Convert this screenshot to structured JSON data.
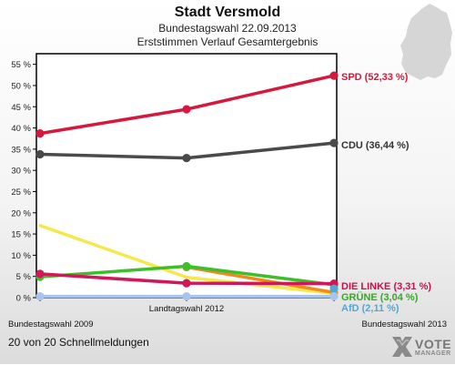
{
  "header": {
    "title": "Stadt Versmold",
    "subtitle": "Bundestagswahl 22.09.2013",
    "subtitle2": "Erststimmen Verlauf Gesamtergebnis"
  },
  "footer": {
    "text": "20 von 20 Schnellmeldungen"
  },
  "brand": {
    "vote": "VOTE",
    "manager": "MANAGER"
  },
  "chart_data": {
    "type": "line",
    "categories": [
      "Bundestagswahl 2009",
      "Landtagswahl 2012",
      "Bundestagswahl 2013"
    ],
    "ylim": [
      0,
      57.5
    ],
    "yticks": [
      0,
      5,
      10,
      15,
      20,
      25,
      30,
      35,
      40,
      45,
      50,
      55
    ],
    "ytick_labels": [
      "0 %",
      "5 %",
      "10 %",
      "15 %",
      "20 %",
      "25 %",
      "30 %",
      "35 %",
      "40 %",
      "45 %",
      "50 %",
      "55 %"
    ],
    "grid": false,
    "series": [
      {
        "key": "fdp",
        "values": [
          17.0,
          4.8,
          1.0
        ],
        "color": "#f5e84a",
        "marker": false
      },
      {
        "key": "cdu",
        "values": [
          33.8,
          32.9,
          36.44
        ],
        "color": "#4a4a4a",
        "label": "CDU (36,44 %)",
        "label_color": "#333333"
      },
      {
        "key": "spd",
        "values": [
          38.7,
          44.4,
          52.33
        ],
        "color": "#d6183c",
        "label": "SPD (52,33 %)",
        "label_color": "#d6183c"
      },
      {
        "key": "orange",
        "values": [
          null,
          7.2,
          1.2
        ],
        "color": "#f08a1c"
      },
      {
        "key": "gruene",
        "values": [
          4.9,
          7.4,
          3.04
        ],
        "color": "#3cbf2a",
        "label": "GRÜNE (3,04 %)",
        "label_color": "#3aa52a"
      },
      {
        "key": "linke",
        "values": [
          5.6,
          3.4,
          3.31
        ],
        "color": "#d0175a",
        "label": "DIE LINKE (3,31 %)",
        "label_color": "#c8104e"
      },
      {
        "key": "afd",
        "values": [
          null,
          null,
          2.11
        ],
        "color": "#4fa8d8",
        "label": "AfD (2,11 %)",
        "label_color": "#4fa8d8"
      },
      {
        "key": "other",
        "values": [
          0.3,
          0.3,
          0.3
        ],
        "color": "#a9c4ec"
      }
    ]
  }
}
